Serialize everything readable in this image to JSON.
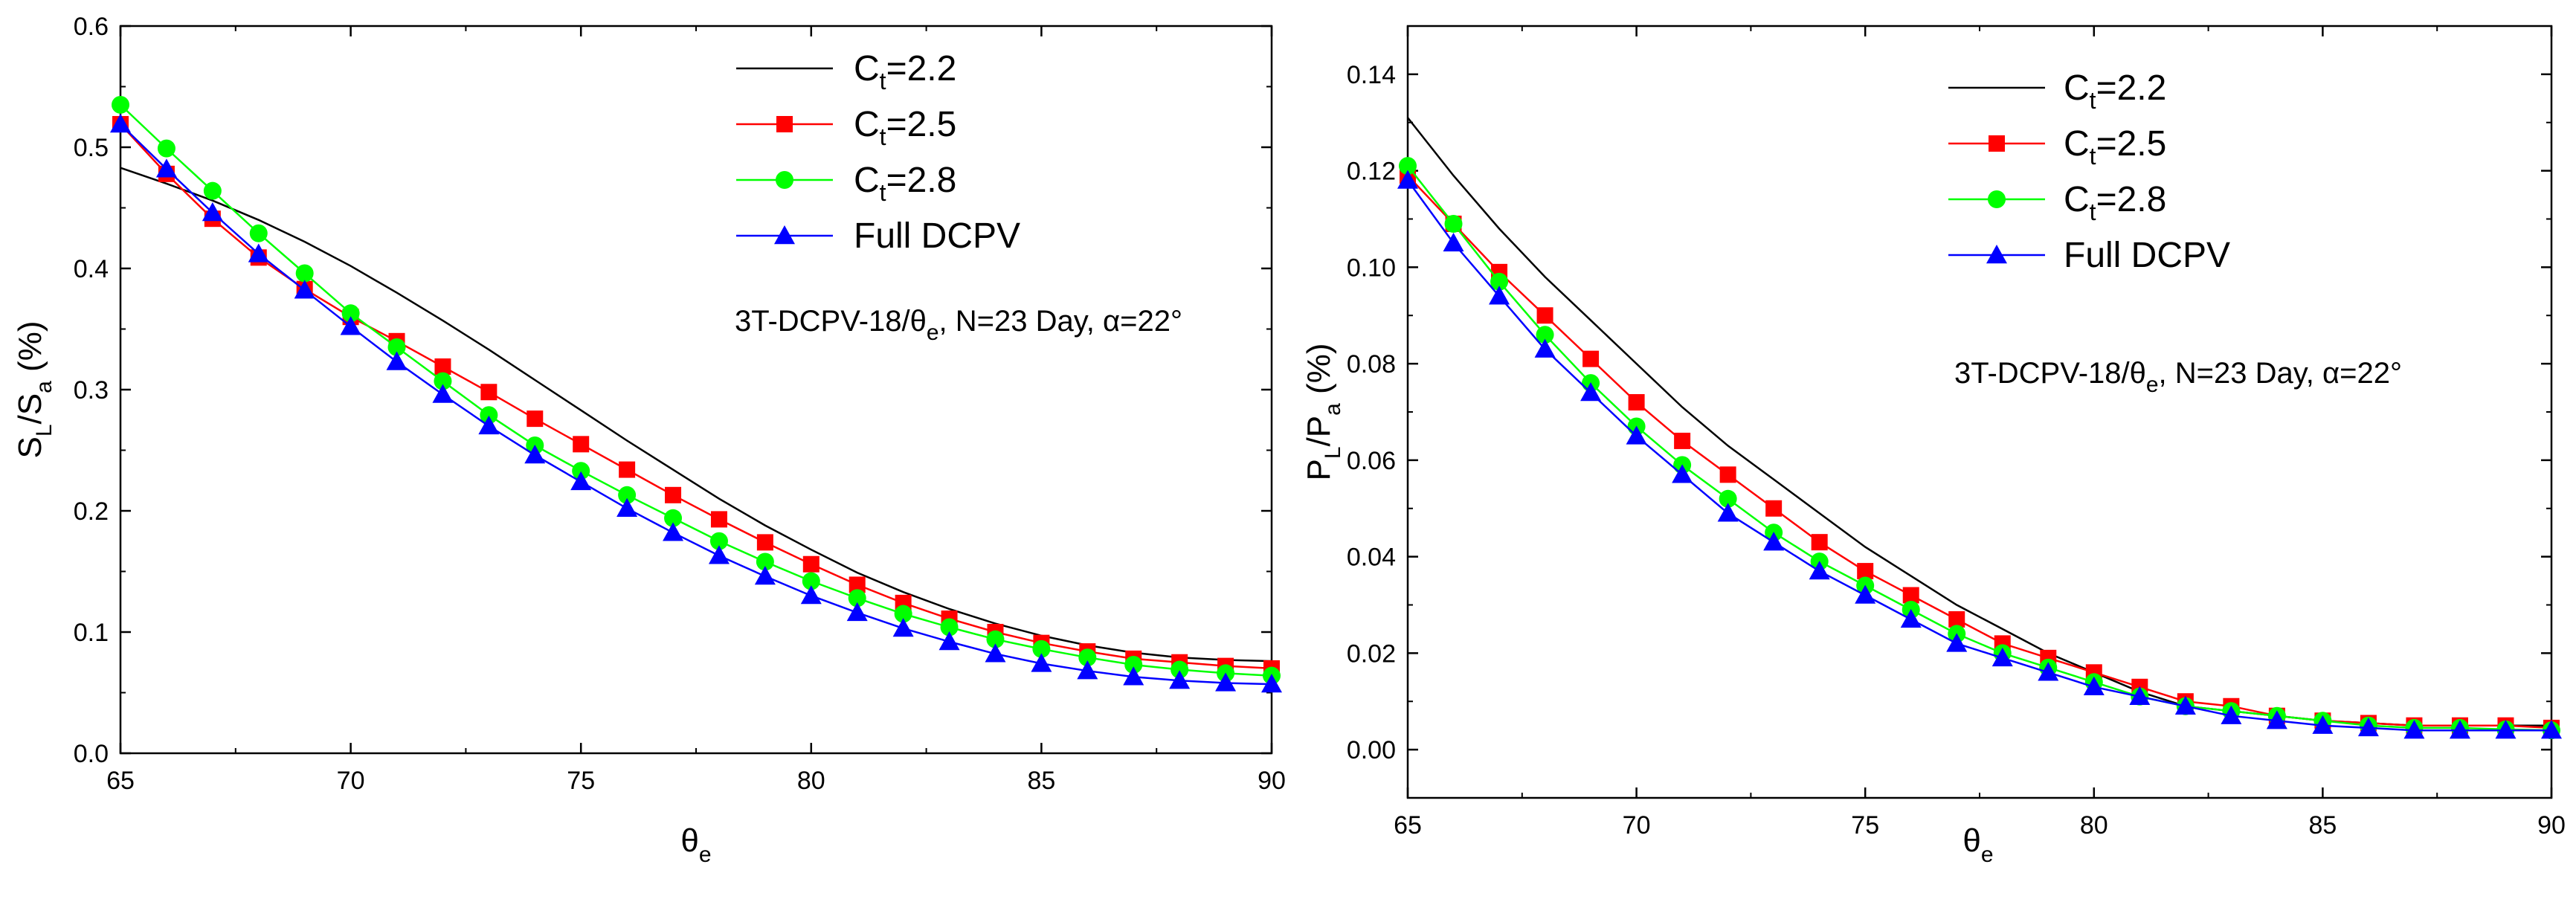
{
  "chart_data": [
    {
      "type": "line",
      "panel": "left",
      "xlabel": {
        "main": "θ",
        "sub": "e"
      },
      "ylabel": {
        "main1": "S",
        "sub1": "L",
        "mid": "/S",
        "sub2": "a",
        "tail": " (%)"
      },
      "xlim": [
        65,
        90
      ],
      "ylim": [
        0,
        0.6
      ],
      "xticks": [
        65,
        70,
        75,
        80,
        85,
        90
      ],
      "yticks": [
        0.0,
        0.1,
        0.2,
        0.3,
        0.4,
        0.5,
        0.6
      ],
      "ytick_labels": [
        "0.0",
        "0.1",
        "0.2",
        "0.3",
        "0.4",
        "0.5",
        "0.6"
      ],
      "legend_position": "top-right",
      "annotation": {
        "pre": "3T-DCPV-18/θ",
        "sub": "e",
        "post": ", N=23 Day, α=22°"
      },
      "x": [
        65,
        66,
        67,
        68,
        69,
        70,
        71,
        72,
        73,
        74,
        75,
        76,
        77,
        78,
        79,
        80,
        81,
        82,
        83,
        84,
        85,
        86,
        87,
        88,
        89,
        90
      ],
      "series": [
        {
          "name": "Ct=2.2",
          "label_main": "C",
          "label_sub": "t",
          "label_tail": "=2.2",
          "color": "#000000",
          "marker": "none",
          "values": [
            0.483,
            0.47,
            0.456,
            0.44,
            0.422,
            0.402,
            0.38,
            0.357,
            0.333,
            0.308,
            0.283,
            0.258,
            0.234,
            0.21,
            0.188,
            0.168,
            0.149,
            0.133,
            0.119,
            0.107,
            0.097,
            0.089,
            0.083,
            0.079,
            0.077,
            0.076
          ]
        },
        {
          "name": "Ct=2.5",
          "label_main": "C",
          "label_sub": "t",
          "label_tail": "=2.5",
          "color": "#ff0000",
          "marker": "square",
          "values": [
            0.519,
            0.478,
            0.441,
            0.409,
            0.383,
            0.36,
            0.34,
            0.319,
            0.298,
            0.276,
            0.255,
            0.234,
            0.213,
            0.193,
            0.174,
            0.156,
            0.139,
            0.124,
            0.111,
            0.1,
            0.091,
            0.084,
            0.078,
            0.075,
            0.072,
            0.07
          ]
        },
        {
          "name": "Ct=2.8",
          "label_main": "C",
          "label_sub": "t",
          "label_tail": "=2.8",
          "color": "#00ff00",
          "marker": "circle",
          "values": [
            0.535,
            0.499,
            0.464,
            0.429,
            0.396,
            0.363,
            0.335,
            0.307,
            0.279,
            0.254,
            0.233,
            0.213,
            0.194,
            0.175,
            0.158,
            0.142,
            0.128,
            0.115,
            0.104,
            0.094,
            0.086,
            0.079,
            0.073,
            0.069,
            0.066,
            0.064
          ]
        },
        {
          "name": "Full DCPV",
          "label_main": "Full DCPV",
          "label_sub": "",
          "label_tail": "",
          "color": "#0000ff",
          "marker": "triangle",
          "values": [
            0.519,
            0.482,
            0.446,
            0.412,
            0.382,
            0.352,
            0.323,
            0.296,
            0.27,
            0.246,
            0.224,
            0.202,
            0.182,
            0.163,
            0.146,
            0.13,
            0.116,
            0.103,
            0.092,
            0.082,
            0.074,
            0.068,
            0.063,
            0.06,
            0.058,
            0.057
          ]
        }
      ]
    },
    {
      "type": "line",
      "panel": "right",
      "xlabel": {
        "main": "θ",
        "sub": "e"
      },
      "ylabel": {
        "main1": "P",
        "sub1": "L",
        "mid": "/P",
        "sub2": "a",
        "tail": " (%)"
      },
      "xlim": [
        65,
        90
      ],
      "ylim": [
        -0.01,
        0.15
      ],
      "xticks": [
        65,
        70,
        75,
        80,
        85,
        90
      ],
      "yticks": [
        0.0,
        0.02,
        0.04,
        0.06,
        0.08,
        0.1,
        0.12,
        0.14
      ],
      "ytick_labels": [
        "0.00",
        "0.02",
        "0.04",
        "0.06",
        "0.08",
        "0.10",
        "0.12",
        "0.14"
      ],
      "legend_position": "top-right",
      "annotation": {
        "pre": "3T-DCPV-18/θ",
        "sub": "e",
        "post": ", N=23 Day, α=22°"
      },
      "x": [
        65,
        66,
        67,
        68,
        69,
        70,
        71,
        72,
        73,
        74,
        75,
        76,
        77,
        78,
        79,
        80,
        81,
        82,
        83,
        84,
        85,
        86,
        87,
        88,
        89,
        90
      ],
      "series": [
        {
          "name": "Ct=2.2",
          "label_main": "C",
          "label_sub": "t",
          "label_tail": "=2.2",
          "color": "#000000",
          "marker": "none",
          "values": [
            0.131,
            0.119,
            0.108,
            0.098,
            0.089,
            0.08,
            0.071,
            0.063,
            0.056,
            0.049,
            0.042,
            0.036,
            0.03,
            0.025,
            0.02,
            0.016,
            0.012,
            0.009,
            0.008,
            0.007,
            0.006,
            0.0055,
            0.005,
            0.005,
            0.005,
            0.005
          ]
        },
        {
          "name": "Ct=2.5",
          "label_main": "C",
          "label_sub": "t",
          "label_tail": "=2.5",
          "color": "#ff0000",
          "marker": "square",
          "values": [
            0.119,
            0.109,
            0.099,
            0.09,
            0.081,
            0.072,
            0.064,
            0.057,
            0.05,
            0.043,
            0.037,
            0.032,
            0.027,
            0.022,
            0.019,
            0.016,
            0.013,
            0.01,
            0.009,
            0.007,
            0.006,
            0.0055,
            0.005,
            0.005,
            0.005,
            0.0045
          ]
        },
        {
          "name": "Ct=2.8",
          "label_main": "C",
          "label_sub": "t",
          "label_tail": "=2.8",
          "color": "#00ff00",
          "marker": "circle",
          "values": [
            0.121,
            0.109,
            0.097,
            0.086,
            0.076,
            0.067,
            0.059,
            0.052,
            0.045,
            0.039,
            0.034,
            0.029,
            0.024,
            0.02,
            0.017,
            0.014,
            0.011,
            0.009,
            0.008,
            0.007,
            0.006,
            0.005,
            0.0045,
            0.0045,
            0.0042,
            0.004
          ]
        },
        {
          "name": "Full DCPV",
          "label_main": "Full DCPV",
          "label_sub": "",
          "label_tail": "",
          "color": "#0000ff",
          "marker": "triangle",
          "values": [
            0.118,
            0.105,
            0.094,
            0.083,
            0.074,
            0.065,
            0.057,
            0.049,
            0.043,
            0.037,
            0.032,
            0.027,
            0.022,
            0.019,
            0.016,
            0.013,
            0.011,
            0.009,
            0.007,
            0.006,
            0.005,
            0.0045,
            0.004,
            0.004,
            0.004,
            0.004
          ]
        }
      ]
    }
  ]
}
